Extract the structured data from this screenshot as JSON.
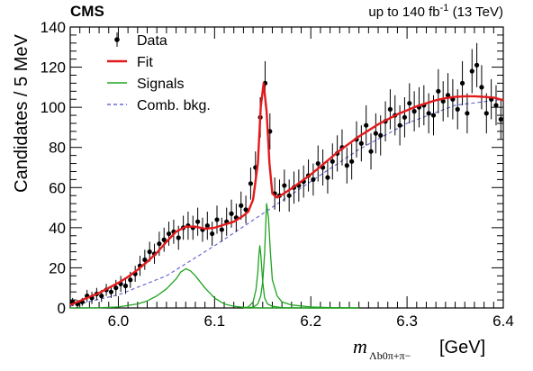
{
  "header": {
    "experiment": "CMS",
    "lumi_prefix": "up to 140 fb",
    "lumi_exp": "-1",
    "lumi_suffix": " (13 TeV)"
  },
  "chart_data": {
    "type": "line",
    "xlim": [
      5.95,
      6.4
    ],
    "ylim": [
      0,
      140
    ],
    "xticks": [
      "6.0",
      "6.1",
      "6.2",
      "6.3",
      "6.4"
    ],
    "yticks": [
      "0",
      "20",
      "40",
      "60",
      "80",
      "100",
      "120",
      "140"
    ],
    "ylabel": "Candidates / 5 MeV",
    "xlabel": {
      "symbol": "m",
      "subscript": "Λb0π+π−",
      "unit": "[GeV]"
    },
    "legend": {
      "position": "top-left",
      "entries": [
        {
          "label": "Data",
          "color": "#000000",
          "style": "marker"
        },
        {
          "label": "Fit",
          "color": "#e31a1c",
          "style": "line"
        },
        {
          "label": "Signals",
          "color": "#1ea31e",
          "style": "line"
        },
        {
          "label": "Comb. bkg.",
          "color": "#6a6ad6",
          "style": "dashed"
        }
      ]
    },
    "series": [
      {
        "name": "Data",
        "x": [
          5.9525,
          5.9575,
          5.9625,
          5.9675,
          5.9725,
          5.9775,
          5.9825,
          5.9875,
          5.9925,
          5.9975,
          6.0025,
          6.0075,
          6.0125,
          6.0175,
          6.0225,
          6.0275,
          6.0325,
          6.0375,
          6.0425,
          6.0475,
          6.0525,
          6.0575,
          6.0625,
          6.0675,
          6.0725,
          6.0775,
          6.0825,
          6.0875,
          6.0925,
          6.0975,
          6.1025,
          6.1075,
          6.1125,
          6.1175,
          6.1225,
          6.1275,
          6.1325,
          6.1375,
          6.1425,
          6.1475,
          6.1525,
          6.1575,
          6.1625,
          6.1675,
          6.1725,
          6.1775,
          6.1825,
          6.1875,
          6.1925,
          6.1975,
          6.2025,
          6.2075,
          6.2125,
          6.2175,
          6.2225,
          6.2275,
          6.2325,
          6.2375,
          6.2425,
          6.2475,
          6.2525,
          6.2575,
          6.2625,
          6.2675,
          6.2725,
          6.2775,
          6.2825,
          6.2875,
          6.2925,
          6.2975,
          6.3025,
          6.3075,
          6.3125,
          6.3175,
          6.3225,
          6.3275,
          6.3325,
          6.3375,
          6.3425,
          6.3475,
          6.3525,
          6.3575,
          6.3625,
          6.3675,
          6.3725,
          6.3775,
          6.3825,
          6.3875,
          6.3925,
          6.3975
        ],
        "y": [
          3,
          2,
          3,
          6,
          5,
          7,
          6,
          9,
          8,
          10,
          12,
          11,
          14,
          17,
          21,
          24,
          28,
          27,
          32,
          34,
          37,
          38,
          35,
          40,
          41,
          40,
          43,
          39,
          41,
          37,
          44,
          39,
          43,
          47,
          45,
          51,
          49,
          62,
          70,
          95,
          112,
          88,
          57,
          56,
          61,
          56,
          60,
          61,
          63,
          66,
          64,
          72,
          70,
          65,
          73,
          77,
          80,
          71,
          73,
          84,
          82,
          91,
          78,
          87,
          86,
          93,
          99,
          96,
          91,
          95,
          102,
          98,
          100,
          101,
          97,
          96,
          108,
          103,
          106,
          104,
          99,
          112,
          97,
          118,
          121,
          110,
          97,
          104,
          101,
          94
        ],
        "yerr": [
          2,
          2,
          2,
          3,
          3,
          3,
          3,
          3,
          3,
          4,
          4,
          4,
          4,
          4,
          5,
          5,
          5,
          5,
          6,
          6,
          6,
          6,
          6,
          6,
          7,
          6,
          7,
          6,
          7,
          6,
          7,
          6,
          7,
          7,
          7,
          7,
          7,
          8,
          8,
          10,
          11,
          9,
          8,
          8,
          8,
          8,
          8,
          8,
          8,
          8,
          8,
          9,
          9,
          8,
          9,
          9,
          9,
          9,
          9,
          9,
          9,
          10,
          9,
          10,
          10,
          10,
          10,
          10,
          10,
          10,
          10,
          10,
          10,
          10,
          10,
          10,
          11,
          10,
          11,
          10,
          10,
          11,
          10,
          11,
          11,
          11,
          10,
          10,
          10,
          10
        ]
      },
      {
        "name": "Fit",
        "x": [
          5.95,
          5.96,
          5.97,
          5.98,
          5.99,
          6.0,
          6.01,
          6.02,
          6.03,
          6.04,
          6.05,
          6.06,
          6.07,
          6.08,
          6.09,
          6.1,
          6.11,
          6.12,
          6.13,
          6.135,
          6.14,
          6.145,
          6.148,
          6.151,
          6.154,
          6.157,
          6.16,
          6.165,
          6.17,
          6.18,
          6.19,
          6.2,
          6.21,
          6.22,
          6.23,
          6.24,
          6.25,
          6.26,
          6.27,
          6.28,
          6.29,
          6.3,
          6.31,
          6.32,
          6.33,
          6.34,
          6.35,
          6.36,
          6.37,
          6.38,
          6.39,
          6.4
        ],
        "y": [
          1.5,
          3.5,
          5.5,
          7.5,
          10,
          12.5,
          15.5,
          19,
          23,
          27.5,
          33,
          38,
          40.5,
          40.5,
          39.5,
          40,
          41.5,
          43,
          46,
          48,
          54,
          72,
          100,
          112,
          98,
          72,
          57,
          55,
          56.5,
          59.5,
          63,
          66.5,
          70.5,
          74.5,
          78.5,
          82,
          85.5,
          88.5,
          91.5,
          94,
          96.5,
          98.5,
          100.5,
          102,
          103.5,
          104.5,
          105.2,
          105.5,
          105.5,
          105.2,
          104.8,
          103.5
        ]
      },
      {
        "name": "Signals",
        "x": [
          5.95,
          5.98,
          6.0,
          6.02,
          6.03,
          6.04,
          6.05,
          6.06,
          6.065,
          6.07,
          6.075,
          6.08,
          6.09,
          6.1,
          6.11,
          6.12,
          6.13,
          6.14,
          6.15,
          6.16,
          6.17,
          6.2,
          6.25
        ],
        "y": [
          0,
          0.1,
          0.5,
          2,
          3.5,
          6,
          9.5,
          14.5,
          18,
          19.5,
          18.5,
          16,
          10,
          5,
          2,
          0.8,
          0.3,
          0.1,
          0,
          0,
          0,
          0,
          0
        ]
      },
      {
        "name": "Signals",
        "x": [
          6.13,
          6.135,
          6.14,
          6.143,
          6.145,
          6.146,
          6.147,
          6.148,
          6.15,
          6.152,
          6.155,
          6.16,
          6.17,
          6.19,
          6.25
        ],
        "y": [
          0,
          0.5,
          3,
          9,
          18,
          26,
          31,
          27,
          13,
          5,
          2,
          0.8,
          0.2,
          0,
          0
        ]
      },
      {
        "name": "Signals",
        "x": [
          6.13,
          6.14,
          6.145,
          6.148,
          6.15,
          6.152,
          6.153,
          6.154,
          6.156,
          6.158,
          6.16,
          6.165,
          6.17,
          6.18,
          6.2,
          6.22,
          6.25
        ],
        "y": [
          0,
          0.3,
          2,
          6,
          13,
          27,
          40,
          52,
          45,
          28,
          14,
          6,
          3,
          1.5,
          0.5,
          0.2,
          0
        ]
      },
      {
        "name": "Comb. bkg.",
        "x": [
          5.95,
          6.0,
          6.05,
          6.1,
          6.15,
          6.2,
          6.25,
          6.3,
          6.35,
          6.4
        ],
        "y": [
          1,
          6.5,
          16,
          31,
          47,
          63,
          79,
          92,
          101,
          104
        ]
      }
    ]
  }
}
